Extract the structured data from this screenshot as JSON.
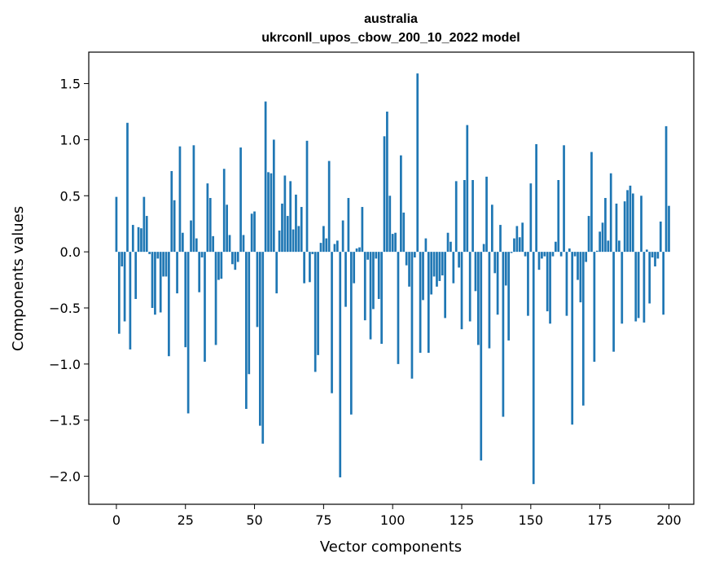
{
  "chart_data": {
    "type": "bar",
    "title": "australia",
    "subtitle": "ukrconll_upos_cbow_200_10_2022 model",
    "xlabel": "Vector components",
    "ylabel": "Components values",
    "xlim": [
      -10,
      209
    ],
    "ylim": [
      -2.25,
      1.78
    ],
    "xticks": [
      0,
      25,
      50,
      75,
      100,
      125,
      150,
      175,
      200
    ],
    "yticks": [
      -2.0,
      -1.5,
      -1.0,
      -0.5,
      0.0,
      0.5,
      1.0,
      1.5
    ],
    "xtick_labels": [
      "0",
      "25",
      "50",
      "75",
      "100",
      "125",
      "150",
      "175",
      "200"
    ],
    "ytick_labels": [
      "−2.0",
      "−1.5",
      "−1.0",
      "−0.5",
      "0.0",
      "0.5",
      "1.0",
      "1.5"
    ],
    "bar_color": "#1f77b4",
    "values": [
      0.49,
      -0.73,
      -0.13,
      -0.62,
      1.15,
      -0.87,
      0.24,
      -0.42,
      0.22,
      0.21,
      0.49,
      0.32,
      -0.02,
      -0.5,
      -0.56,
      -0.06,
      -0.54,
      -0.22,
      -0.22,
      -0.93,
      0.72,
      0.46,
      -0.37,
      0.94,
      0.17,
      -0.85,
      -1.44,
      0.28,
      0.95,
      0.12,
      -0.36,
      -0.05,
      -0.98,
      0.61,
      0.48,
      0.14,
      -0.83,
      -0.25,
      -0.24,
      0.74,
      0.42,
      0.15,
      -0.11,
      -0.16,
      -0.09,
      0.93,
      0.15,
      -1.4,
      -1.09,
      0.34,
      0.36,
      -0.67,
      -1.55,
      -1.71,
      1.34,
      0.71,
      0.7,
      1.0,
      -0.37,
      0.19,
      0.43,
      0.68,
      0.32,
      0.63,
      0.2,
      0.51,
      0.23,
      0.4,
      -0.28,
      0.99,
      -0.27,
      -0.02,
      -1.07,
      -0.92,
      0.08,
      0.23,
      0.12,
      0.81,
      -1.26,
      0.07,
      0.1,
      -2.01,
      0.28,
      -0.49,
      0.48,
      -1.45,
      -0.28,
      0.03,
      0.04,
      0.4,
      -0.61,
      -0.07,
      -0.78,
      -0.51,
      -0.06,
      -0.42,
      -0.82,
      1.03,
      1.25,
      0.5,
      0.16,
      0.17,
      -1.0,
      0.86,
      0.35,
      -0.12,
      -0.31,
      -1.13,
      -0.05,
      1.59,
      -0.9,
      -0.43,
      0.12,
      -0.9,
      -0.38,
      -0.22,
      -0.31,
      -0.26,
      -0.21,
      -0.59,
      0.17,
      0.09,
      -0.28,
      0.63,
      -0.14,
      -0.69,
      0.64,
      1.13,
      -0.62,
      0.64,
      -0.35,
      -0.83,
      -1.86,
      0.07,
      0.67,
      -0.86,
      0.42,
      -0.19,
      -0.56,
      0.24,
      -1.47,
      -0.3,
      -0.79,
      -0.01,
      0.12,
      0.23,
      0.13,
      0.26,
      -0.04,
      -0.57,
      0.61,
      -2.07,
      0.96,
      -0.16,
      -0.06,
      -0.04,
      -0.53,
      -0.64,
      -0.04,
      0.09,
      0.64,
      -0.04,
      0.95,
      -0.57,
      0.03,
      -1.54,
      -0.04,
      -0.25,
      -0.45,
      -1.37,
      -0.09,
      0.32,
      0.89,
      -0.98,
      0.01,
      0.18,
      0.26,
      0.48,
      0.1,
      0.7,
      -0.89,
      0.43,
      0.1,
      -0.64,
      0.45,
      0.55,
      0.59,
      0.52,
      -0.62,
      -0.59,
      0.5,
      -0.63,
      0.02,
      -0.46,
      -0.05,
      -0.13,
      -0.06,
      0.27,
      -0.56,
      1.12,
      0.41
    ]
  }
}
